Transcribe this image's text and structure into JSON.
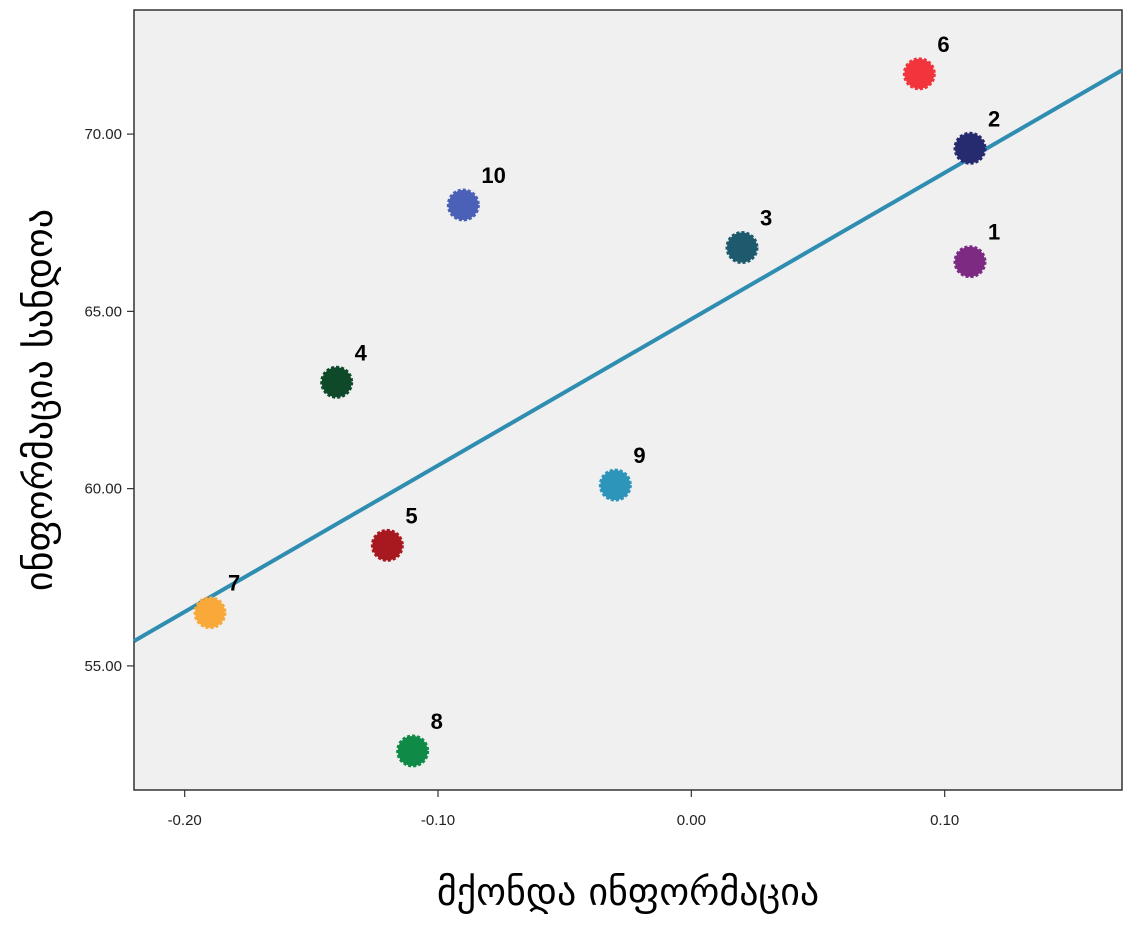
{
  "chart_data": {
    "type": "scatter",
    "xlabel": "მქონდა ინფორმაცია",
    "ylabel": "ინფორმაცია სანდოა",
    "xlim": [
      -0.22,
      0.17
    ],
    "ylim": [
      51.5,
      73.5
    ],
    "x_ticks": [
      {
        "value": -0.2,
        "label": "-0.20"
      },
      {
        "value": -0.1,
        "label": "-0.10"
      },
      {
        "value": 0.0,
        "label": "0.00"
      },
      {
        "value": 0.1,
        "label": "0.10"
      }
    ],
    "y_ticks": [
      {
        "value": 55,
        "label": "55.00"
      },
      {
        "value": 60,
        "label": "60.00"
      },
      {
        "value": 65,
        "label": "65.00"
      },
      {
        "value": 70,
        "label": "70.00"
      }
    ],
    "points": [
      {
        "label": "1",
        "x": 0.11,
        "y": 66.4,
        "color": "#7d2a83"
      },
      {
        "label": "2",
        "x": 0.11,
        "y": 69.6,
        "color": "#262a6e"
      },
      {
        "label": "3",
        "x": 0.02,
        "y": 66.8,
        "color": "#1e5a6e"
      },
      {
        "label": "4",
        "x": -0.14,
        "y": 63.0,
        "color": "#0e4a2a"
      },
      {
        "label": "5",
        "x": -0.12,
        "y": 58.4,
        "color": "#a8181f"
      },
      {
        "label": "6",
        "x": 0.09,
        "y": 71.7,
        "color": "#f2353c"
      },
      {
        "label": "7",
        "x": -0.19,
        "y": 56.5,
        "color": "#f9a93a"
      },
      {
        "label": "8",
        "x": -0.11,
        "y": 52.6,
        "color": "#0f8a47"
      },
      {
        "label": "9",
        "x": -0.03,
        "y": 60.1,
        "color": "#2e95ba"
      },
      {
        "label": "10",
        "x": -0.09,
        "y": 68.0,
        "color": "#4a61b7"
      }
    ],
    "fit_line": {
      "x": [
        -0.22,
        0.17
      ],
      "y": [
        55.7,
        71.8
      ],
      "color": "#2e8db0"
    },
    "plot_background": "#f0f0f0",
    "grid": false,
    "legend": "none"
  }
}
